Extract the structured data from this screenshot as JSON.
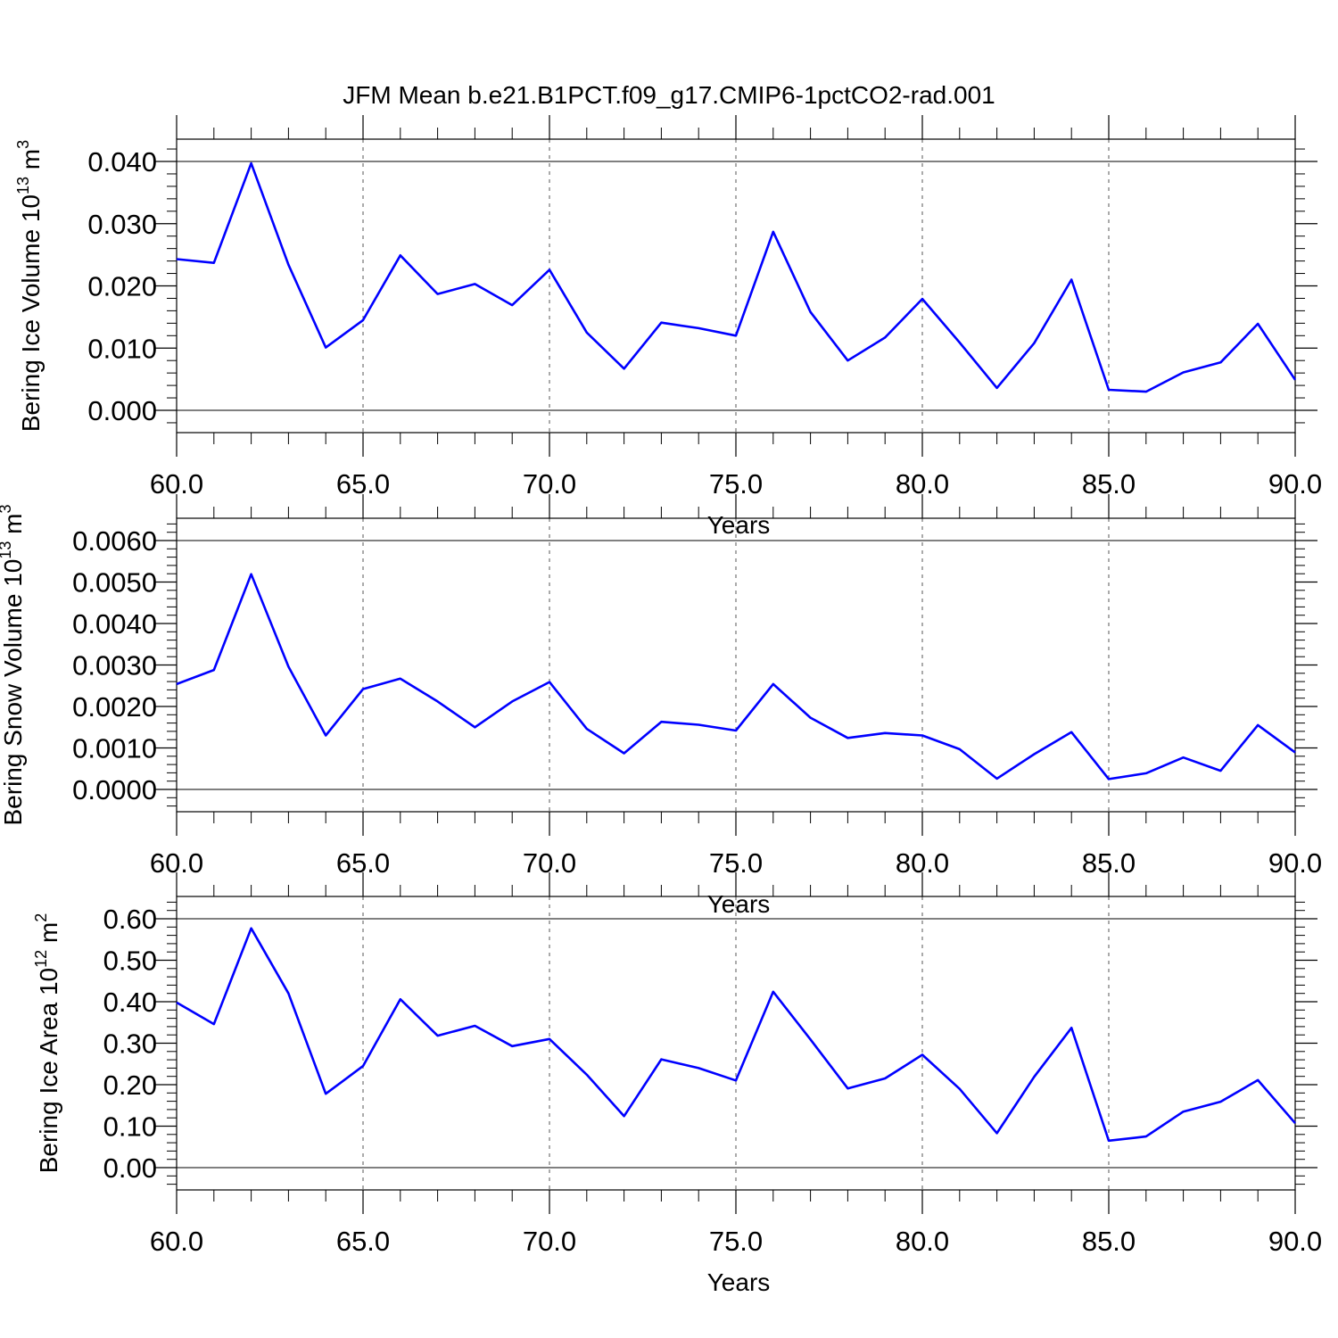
{
  "title": "JFM Mean b.e21.B1PCT.f09_g17.CMIP6-1pctCO2-rad.001",
  "colors": {
    "line": "#0000ff",
    "axis": "#000000",
    "grid": "#555555"
  },
  "chart_data": [
    {
      "type": "line",
      "xlabel": "Years",
      "ylabel": "Bering Ice Volume 10",
      "ylabel_sup": "13",
      "ylabel_unit": "m",
      "ylabel_unit_sup": "3",
      "xlim": [
        60,
        90
      ],
      "ylim": [
        0,
        0.04
      ],
      "x_ticks": [
        60,
        65,
        70,
        75,
        80,
        85,
        90
      ],
      "x_tick_labels": [
        "60.0",
        "65.0",
        "70.0",
        "75.0",
        "80.0",
        "85.0",
        "90.0"
      ],
      "y_ticks": [
        0,
        0.01,
        0.02,
        0.03,
        0.04
      ],
      "y_tick_labels": [
        "0.000",
        "0.010",
        "0.020",
        "0.030",
        "0.040"
      ],
      "grid": "vertical dashed at major x ticks",
      "x": [
        60,
        61,
        62,
        63,
        64,
        65,
        66,
        67,
        68,
        69,
        70,
        71,
        72,
        73,
        74,
        75,
        76,
        77,
        78,
        79,
        80,
        81,
        82,
        83,
        84,
        85,
        86,
        87,
        88,
        89,
        90
      ],
      "values": [
        0.0243,
        0.0237,
        0.0397,
        0.0234,
        0.0101,
        0.0145,
        0.0249,
        0.0187,
        0.0203,
        0.0169,
        0.0226,
        0.0125,
        0.0067,
        0.0141,
        0.0132,
        0.012,
        0.0287,
        0.0158,
        0.008,
        0.0117,
        0.0179,
        0.0109,
        0.0036,
        0.0108,
        0.021,
        0.0033,
        0.003,
        0.0061,
        0.0077,
        0.0139,
        0.0049
      ]
    },
    {
      "type": "line",
      "xlabel": "Years",
      "ylabel": "Bering Snow Volume 10",
      "ylabel_sup": "13",
      "ylabel_unit": "m",
      "ylabel_unit_sup": "3",
      "xlim": [
        60,
        90
      ],
      "ylim": [
        0,
        0.006
      ],
      "x_ticks": [
        60,
        65,
        70,
        75,
        80,
        85,
        90
      ],
      "x_tick_labels": [
        "60.0",
        "65.0",
        "70.0",
        "75.0",
        "80.0",
        "85.0",
        "90.0"
      ],
      "y_ticks": [
        0,
        0.001,
        0.002,
        0.003,
        0.004,
        0.005,
        0.006
      ],
      "y_tick_labels": [
        "0.0000",
        "0.0010",
        "0.0020",
        "0.0030",
        "0.0040",
        "0.0050",
        "0.0060"
      ],
      "grid": "vertical dashed at major x ticks",
      "x": [
        60,
        61,
        62,
        63,
        64,
        65,
        66,
        67,
        68,
        69,
        70,
        71,
        72,
        73,
        74,
        75,
        76,
        77,
        78,
        79,
        80,
        81,
        82,
        83,
        84,
        85,
        86,
        87,
        88,
        89,
        90
      ],
      "values": [
        0.00254,
        0.00288,
        0.00519,
        0.00296,
        0.0013,
        0.00242,
        0.00267,
        0.00212,
        0.0015,
        0.00212,
        0.00259,
        0.00146,
        0.00087,
        0.00163,
        0.00156,
        0.00142,
        0.00254,
        0.00173,
        0.00124,
        0.00136,
        0.0013,
        0.00097,
        0.00026,
        0.00085,
        0.00138,
        0.00025,
        0.00039,
        0.00077,
        0.00045,
        0.00155,
        0.00089
      ]
    },
    {
      "type": "line",
      "xlabel": "Years",
      "ylabel": "Bering Ice Area 10",
      "ylabel_sup": "12",
      "ylabel_unit": "m",
      "ylabel_unit_sup": "2",
      "xlim": [
        60,
        90
      ],
      "ylim": [
        0,
        0.6
      ],
      "x_ticks": [
        60,
        65,
        70,
        75,
        80,
        85,
        90
      ],
      "x_tick_labels": [
        "60.0",
        "65.0",
        "70.0",
        "75.0",
        "80.0",
        "85.0",
        "90.0"
      ],
      "y_ticks": [
        0,
        0.1,
        0.2,
        0.3,
        0.4,
        0.5,
        0.6
      ],
      "y_tick_labels": [
        "0.00",
        "0.10",
        "0.20",
        "0.30",
        "0.40",
        "0.50",
        "0.60"
      ],
      "grid": "vertical dashed at major x ticks",
      "x": [
        60,
        61,
        62,
        63,
        64,
        65,
        66,
        67,
        68,
        69,
        70,
        71,
        72,
        73,
        74,
        75,
        76,
        77,
        78,
        79,
        80,
        81,
        82,
        83,
        84,
        85,
        86,
        87,
        88,
        89,
        90
      ],
      "values": [
        0.398,
        0.346,
        0.577,
        0.42,
        0.178,
        0.245,
        0.406,
        0.318,
        0.342,
        0.293,
        0.31,
        0.224,
        0.124,
        0.261,
        0.24,
        0.21,
        0.424,
        0.309,
        0.191,
        0.215,
        0.272,
        0.19,
        0.083,
        0.219,
        0.337,
        0.065,
        0.075,
        0.135,
        0.159,
        0.211,
        0.107
      ]
    }
  ]
}
